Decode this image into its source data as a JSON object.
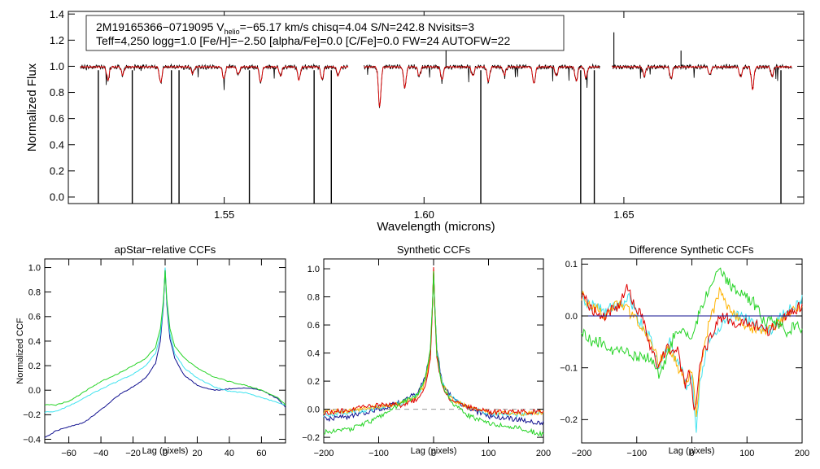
{
  "colors": {
    "black": "#000000",
    "red": "#e00000",
    "navy": "#10108f",
    "cyan": "#3fe3ef",
    "green": "#27d427",
    "orange": "#ffb300",
    "gray": "#9a9a9a"
  },
  "top": {
    "title_line1_prefix": "2M19165366−0719095  V",
    "title_line1_sub": "helio",
    "title_line1_suffix": "=−65.17 km/s  chisq=4.04  S/N=242.8  Nvisits=3",
    "title_line2": "Teff=4,250 logg=1.0 [Fe/H]=−2.50 [alpha/Fe]=0.0 [C/Fe]=0.0 FW=24 AUTOFW=22",
    "xlabel": "Wavelength (microns)",
    "ylabel": "Normalized Flux",
    "xlim": [
      1.511,
      1.695
    ],
    "ylim": [
      -0.05,
      1.42
    ],
    "xticks": [
      "1.55",
      "1.60",
      "1.65"
    ],
    "yticks": [
      "0.0",
      "0.2",
      "0.4",
      "0.6",
      "0.8",
      "1.0",
      "1.2",
      "1.4"
    ],
    "chips": [
      [
        1.514,
        1.581
      ],
      [
        1.585,
        1.644
      ],
      [
        1.647,
        1.692
      ]
    ],
    "deep_lines": [
      1.5185,
      1.527,
      1.5368,
      1.5387,
      1.5563,
      1.5725,
      1.5768,
      1.6142,
      1.6392,
      1.6426,
      1.6893
    ],
    "absorption_lines": [
      {
        "x": 1.5209,
        "d": 0.1
      },
      {
        "x": 1.5246,
        "d": 0.06
      },
      {
        "x": 1.5341,
        "d": 0.12
      },
      {
        "x": 1.5421,
        "d": 0.05
      },
      {
        "x": 1.5499,
        "d": 0.09
      },
      {
        "x": 1.5535,
        "d": 0.06
      },
      {
        "x": 1.5591,
        "d": 0.12
      },
      {
        "x": 1.5641,
        "d": 0.07
      },
      {
        "x": 1.5687,
        "d": 0.1
      },
      {
        "x": 1.5745,
        "d": 0.1
      },
      {
        "x": 1.5785,
        "d": 0.07
      },
      {
        "x": 1.5889,
        "d": 0.3
      },
      {
        "x": 1.5952,
        "d": 0.16
      },
      {
        "x": 1.5988,
        "d": 0.07
      },
      {
        "x": 1.6045,
        "d": 0.1
      },
      {
        "x": 1.6122,
        "d": 0.07
      },
      {
        "x": 1.6161,
        "d": 0.11
      },
      {
        "x": 1.6201,
        "d": 0.06
      },
      {
        "x": 1.6275,
        "d": 0.13
      },
      {
        "x": 1.6331,
        "d": 0.07
      },
      {
        "x": 1.6381,
        "d": 0.11
      },
      {
        "x": 1.6405,
        "d": 0.08
      },
      {
        "x": 1.6551,
        "d": 0.07
      },
      {
        "x": 1.6618,
        "d": 0.09
      },
      {
        "x": 1.6715,
        "d": 0.06
      },
      {
        "x": 1.6792,
        "d": 0.08
      },
      {
        "x": 1.6822,
        "d": 0.17
      },
      {
        "x": 1.6871,
        "d": 0.07
      }
    ],
    "spikes": [
      {
        "x": 1.6475,
        "h": 1.26
      },
      {
        "x": 1.6055,
        "h": 1.14
      },
      {
        "x": 1.6643,
        "h": 1.12
      }
    ]
  },
  "ccf1": {
    "title": "apStar−relative CCFs",
    "xlabel": "Lag (pixels)",
    "ylabel": "Normalized CCF",
    "xlim": [
      -75,
      75
    ],
    "ylim": [
      -0.43,
      1.07
    ],
    "xticks": [
      "−60",
      "−40",
      "−20",
      "0",
      "20",
      "40",
      "60"
    ],
    "yticks": [
      "−0.4",
      "−0.2",
      "0.0",
      "0.2",
      "0.4",
      "0.6",
      "0.8",
      "1.0"
    ],
    "series": [
      {
        "name": "navy",
        "points": [
          [
            -75,
            -0.39
          ],
          [
            -68,
            -0.33
          ],
          [
            -60,
            -0.3
          ],
          [
            -50,
            -0.26
          ],
          [
            -40,
            -0.16
          ],
          [
            -30,
            -0.05
          ],
          [
            -20,
            0.03
          ],
          [
            -12,
            0.1
          ],
          [
            -6,
            0.22
          ],
          [
            -3,
            0.4
          ],
          [
            -1,
            0.7
          ],
          [
            0,
            0.99
          ],
          [
            1,
            0.7
          ],
          [
            3,
            0.42
          ],
          [
            6,
            0.26
          ],
          [
            12,
            0.12
          ],
          [
            20,
            0.04
          ],
          [
            30,
            0.0
          ],
          [
            40,
            0.01
          ],
          [
            50,
            0.02
          ],
          [
            60,
            0.0
          ],
          [
            70,
            -0.07
          ],
          [
            75,
            -0.14
          ]
        ]
      },
      {
        "name": "cyan",
        "points": [
          [
            -75,
            -0.18
          ],
          [
            -68,
            -0.17
          ],
          [
            -60,
            -0.13
          ],
          [
            -50,
            -0.06
          ],
          [
            -40,
            0.01
          ],
          [
            -30,
            0.07
          ],
          [
            -20,
            0.13
          ],
          [
            -12,
            0.2
          ],
          [
            -6,
            0.3
          ],
          [
            -3,
            0.45
          ],
          [
            -1,
            0.72
          ],
          [
            0,
            1.0
          ],
          [
            1,
            0.73
          ],
          [
            3,
            0.46
          ],
          [
            6,
            0.3
          ],
          [
            12,
            0.18
          ],
          [
            20,
            0.1
          ],
          [
            30,
            0.03
          ],
          [
            40,
            -0.01
          ],
          [
            50,
            -0.02
          ],
          [
            60,
            -0.06
          ],
          [
            70,
            -0.1
          ],
          [
            75,
            -0.12
          ]
        ]
      },
      {
        "name": "green",
        "points": [
          [
            -75,
            -0.12
          ],
          [
            -68,
            -0.12
          ],
          [
            -60,
            -0.09
          ],
          [
            -50,
            -0.01
          ],
          [
            -40,
            0.07
          ],
          [
            -30,
            0.13
          ],
          [
            -20,
            0.2
          ],
          [
            -12,
            0.26
          ],
          [
            -6,
            0.35
          ],
          [
            -3,
            0.5
          ],
          [
            -1,
            0.74
          ],
          [
            0,
            0.98
          ],
          [
            1,
            0.75
          ],
          [
            3,
            0.5
          ],
          [
            6,
            0.36
          ],
          [
            12,
            0.26
          ],
          [
            20,
            0.18
          ],
          [
            30,
            0.11
          ],
          [
            40,
            0.07
          ],
          [
            50,
            0.04
          ],
          [
            60,
            0.0
          ],
          [
            70,
            -0.06
          ],
          [
            75,
            -0.12
          ]
        ]
      }
    ]
  },
  "ccf2": {
    "title": "Synthetic CCFs",
    "xlabel": "Lag (pixels)",
    "xlim": [
      -200,
      200
    ],
    "ylim": [
      -0.24,
      1.07
    ],
    "xticks": [
      "−200",
      "−100",
      "0",
      "100",
      "200"
    ],
    "yticks": [
      "−0.2",
      "0.0",
      "0.2",
      "0.4",
      "0.6",
      "0.8",
      "1.0"
    ],
    "series": [
      {
        "name": "navy",
        "points": [
          [
            -200,
            -0.07
          ],
          [
            -150,
            -0.05
          ],
          [
            -100,
            0.0
          ],
          [
            -60,
            0.05
          ],
          [
            -30,
            0.12
          ],
          [
            -15,
            0.22
          ],
          [
            -6,
            0.42
          ],
          [
            -2,
            0.75
          ],
          [
            0,
            0.98
          ],
          [
            2,
            0.75
          ],
          [
            6,
            0.42
          ],
          [
            15,
            0.2
          ],
          [
            30,
            0.1
          ],
          [
            60,
            0.01
          ],
          [
            100,
            -0.05
          ],
          [
            150,
            -0.07
          ],
          [
            200,
            -0.1
          ]
        ]
      },
      {
        "name": "cyan",
        "points": [
          [
            -200,
            -0.04
          ],
          [
            -150,
            -0.02
          ],
          [
            -100,
            0.01
          ],
          [
            -60,
            0.04
          ],
          [
            -30,
            0.1
          ],
          [
            -15,
            0.2
          ],
          [
            -6,
            0.4
          ],
          [
            -2,
            0.74
          ],
          [
            0,
            0.99
          ],
          [
            2,
            0.74
          ],
          [
            6,
            0.4
          ],
          [
            15,
            0.2
          ],
          [
            30,
            0.09
          ],
          [
            60,
            0.02
          ],
          [
            100,
            -0.03
          ],
          [
            150,
            -0.04
          ],
          [
            200,
            -0.02
          ]
        ]
      },
      {
        "name": "orange",
        "points": [
          [
            -200,
            -0.02
          ],
          [
            -150,
            -0.01
          ],
          [
            -100,
            0.02
          ],
          [
            -60,
            0.04
          ],
          [
            -30,
            0.09
          ],
          [
            -15,
            0.19
          ],
          [
            -6,
            0.38
          ],
          [
            -2,
            0.73
          ],
          [
            0,
            0.99
          ],
          [
            2,
            0.73
          ],
          [
            6,
            0.38
          ],
          [
            15,
            0.18
          ],
          [
            30,
            0.08
          ],
          [
            60,
            0.02
          ],
          [
            100,
            -0.02
          ],
          [
            150,
            -0.03
          ],
          [
            200,
            -0.02
          ]
        ]
      },
      {
        "name": "red",
        "points": [
          [
            -200,
            -0.03
          ],
          [
            -150,
            0.0
          ],
          [
            -100,
            0.03
          ],
          [
            -60,
            0.03
          ],
          [
            -30,
            0.07
          ],
          [
            -15,
            0.17
          ],
          [
            -6,
            0.36
          ],
          [
            -2,
            0.72
          ],
          [
            0,
            1.0
          ],
          [
            2,
            0.72
          ],
          [
            6,
            0.36
          ],
          [
            15,
            0.17
          ],
          [
            30,
            0.07
          ],
          [
            60,
            0.02
          ],
          [
            100,
            -0.02
          ],
          [
            150,
            -0.02
          ],
          [
            200,
            -0.02
          ]
        ]
      },
      {
        "name": "green",
        "points": [
          [
            -200,
            -0.16
          ],
          [
            -150,
            -0.14
          ],
          [
            -100,
            -0.06
          ],
          [
            -60,
            0.04
          ],
          [
            -30,
            0.1
          ],
          [
            -15,
            0.22
          ],
          [
            -6,
            0.42
          ],
          [
            -2,
            0.75
          ],
          [
            0,
            0.98
          ],
          [
            2,
            0.75
          ],
          [
            6,
            0.4
          ],
          [
            15,
            0.18
          ],
          [
            30,
            0.06
          ],
          [
            60,
            -0.04
          ],
          [
            100,
            -0.1
          ],
          [
            150,
            -0.13
          ],
          [
            200,
            -0.18
          ]
        ]
      }
    ]
  },
  "ccf3": {
    "title": "Difference Synthetic CCFs",
    "xlabel": "Lag (pixels)",
    "xlim": [
      -200,
      200
    ],
    "ylim": [
      -0.245,
      0.11
    ],
    "xticks": [
      "−200",
      "−100",
      "0",
      "100",
      "200"
    ],
    "yticks": [
      "−0.2",
      "−0.1",
      "0.0",
      "0.1"
    ],
    "series": [
      {
        "name": "cyan",
        "points": [
          [
            -200,
            0.03
          ],
          [
            -180,
            0.02
          ],
          [
            -160,
            0.01
          ],
          [
            -130,
            0.02
          ],
          [
            -115,
            0.04
          ],
          [
            -100,
            0.0
          ],
          [
            -80,
            -0.03
          ],
          [
            -60,
            -0.1
          ],
          [
            -40,
            -0.05
          ],
          [
            -20,
            -0.1
          ],
          [
            -10,
            -0.14
          ],
          [
            0,
            -0.11
          ],
          [
            8,
            -0.23
          ],
          [
            15,
            -0.12
          ],
          [
            30,
            -0.05
          ],
          [
            50,
            -0.02
          ],
          [
            80,
            0.0
          ],
          [
            110,
            -0.01
          ],
          [
            140,
            -0.03
          ],
          [
            170,
            0.01
          ],
          [
            200,
            0.03
          ]
        ]
      },
      {
        "name": "orange",
        "points": [
          [
            -200,
            0.04
          ],
          [
            -180,
            0.02
          ],
          [
            -160,
            0.0
          ],
          [
            -130,
            0.03
          ],
          [
            -115,
            0.01
          ],
          [
            -100,
            -0.01
          ],
          [
            -80,
            -0.04
          ],
          [
            -60,
            -0.09
          ],
          [
            -40,
            -0.06
          ],
          [
            -20,
            -0.11
          ],
          [
            -10,
            -0.13
          ],
          [
            0,
            -0.1
          ],
          [
            8,
            -0.2
          ],
          [
            15,
            -0.1
          ],
          [
            30,
            -0.02
          ],
          [
            50,
            0.05
          ],
          [
            70,
            0.01
          ],
          [
            100,
            -0.02
          ],
          [
            130,
            -0.03
          ],
          [
            150,
            -0.02
          ],
          [
            170,
            0.0
          ],
          [
            200,
            0.02
          ]
        ]
      },
      {
        "name": "red",
        "points": [
          [
            -200,
            0.04
          ],
          [
            -180,
            0.01
          ],
          [
            -160,
            0.0
          ],
          [
            -130,
            0.02
          ],
          [
            -118,
            0.06
          ],
          [
            -105,
            0.02
          ],
          [
            -90,
            0.0
          ],
          [
            -75,
            -0.06
          ],
          [
            -60,
            -0.1
          ],
          [
            -45,
            -0.06
          ],
          [
            -25,
            -0.07
          ],
          [
            -12,
            -0.14
          ],
          [
            -5,
            -0.1
          ],
          [
            5,
            -0.19
          ],
          [
            15,
            -0.09
          ],
          [
            30,
            -0.05
          ],
          [
            45,
            -0.01
          ],
          [
            60,
            0.0
          ],
          [
            80,
            -0.02
          ],
          [
            100,
            -0.01
          ],
          [
            120,
            -0.02
          ],
          [
            140,
            -0.03
          ],
          [
            160,
            -0.01
          ],
          [
            180,
            0.01
          ],
          [
            200,
            0.02
          ]
        ]
      },
      {
        "name": "green",
        "points": [
          [
            -200,
            -0.03
          ],
          [
            -180,
            -0.05
          ],
          [
            -160,
            -0.05
          ],
          [
            -140,
            -0.07
          ],
          [
            -120,
            -0.07
          ],
          [
            -100,
            -0.08
          ],
          [
            -80,
            -0.08
          ],
          [
            -60,
            -0.11
          ],
          [
            -45,
            -0.08
          ],
          [
            -30,
            -0.03
          ],
          [
            -15,
            -0.02
          ],
          [
            0,
            -0.05
          ],
          [
            15,
            0.01
          ],
          [
            30,
            0.05
          ],
          [
            50,
            0.09
          ],
          [
            70,
            0.06
          ],
          [
            90,
            0.04
          ],
          [
            110,
            0.03
          ],
          [
            130,
            -0.01
          ],
          [
            150,
            -0.01
          ],
          [
            170,
            -0.03
          ],
          [
            190,
            -0.02
          ],
          [
            200,
            -0.03
          ]
        ]
      },
      {
        "name": "navy",
        "points": [
          [
            -200,
            0.0
          ],
          [
            200,
            0.0
          ]
        ]
      }
    ]
  }
}
